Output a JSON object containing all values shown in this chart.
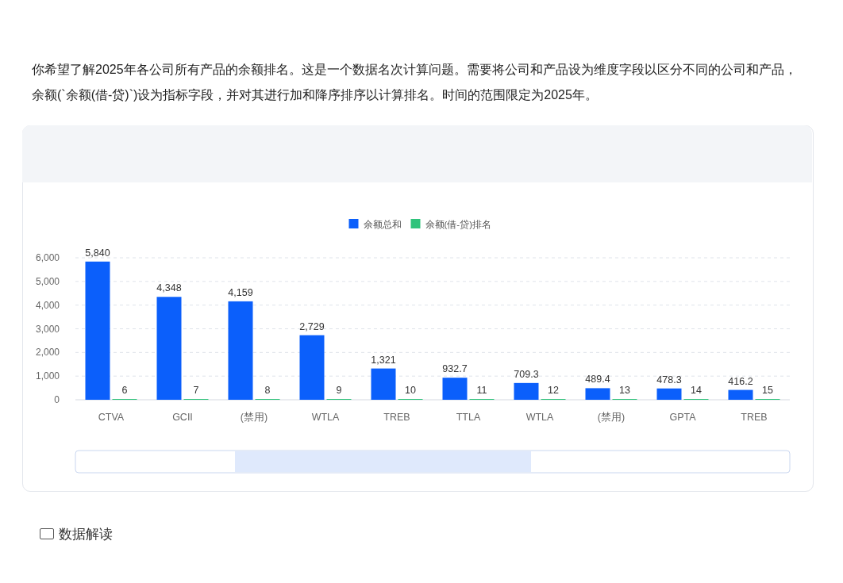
{
  "chart_data": {
    "type": "bar",
    "title": "你希望了解2025年各公司所有产品的余额排名。这是一个数据名次计算问题。需要将公司和产品设为维度字段以区分不同的公司和产品，余额(`余额(借-贷)`)设为指标字段，并对其进行加和降序排序以计算排名。时间的范围限定为2025年。",
    "categories": [
      "CTVA",
      "GCII",
      "(禁用)",
      "WTLA",
      "TREB",
      "TTLA",
      "WTLA",
      "(禁用)",
      "GPTA",
      "TREB"
    ],
    "series": [
      {
        "name": "余额总和",
        "color": "#0b5ffb",
        "values": [
          5840,
          4348,
          4159,
          2729,
          1321,
          932.7,
          709.3,
          489.4,
          478.3,
          416.2
        ],
        "value_labels": [
          "5,840",
          "4,348",
          "4,159",
          "2,729",
          "1,321",
          "932.7",
          "709.3",
          "489.4",
          "478.3",
          "416.2"
        ]
      },
      {
        "name": "余额(借-贷)排名",
        "color": "#2fc37b",
        "values": [
          6,
          7,
          8,
          9,
          10,
          11,
          12,
          13,
          14,
          15
        ],
        "value_labels": [
          "6",
          "7",
          "8",
          "9",
          "10",
          "11",
          "12",
          "13",
          "14",
          "15"
        ]
      }
    ],
    "ylim": [
      0,
      6000
    ],
    "yticks": [
      {
        "value": 0,
        "label": "0"
      },
      {
        "value": 1000,
        "label": "1,000"
      },
      {
        "value": 2000,
        "label": "2,000"
      },
      {
        "value": 3000,
        "label": "3,000"
      },
      {
        "value": 4000,
        "label": "4,000"
      },
      {
        "value": 5000,
        "label": "5,000"
      },
      {
        "value": 6000,
        "label": "6,000"
      }
    ],
    "grid": "y",
    "legend": "top",
    "annotations": [
      "数据解读"
    ]
  }
}
